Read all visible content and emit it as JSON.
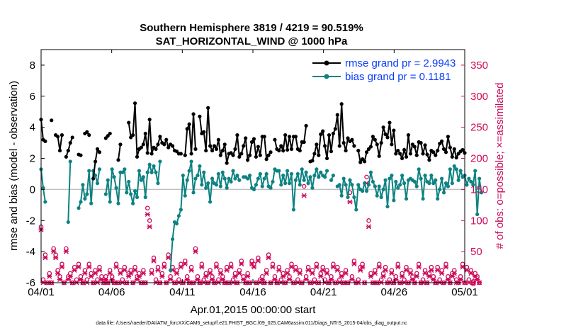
{
  "chart_data": {
    "type": "line",
    "title": "Southern Hemisphere 3819 / 4219 = 90.519%",
    "subtitle": "SAT_HORIZONTAL_WIND @ 1000 hPa",
    "xlabel": "Apr.01,2015 00:00:00 start",
    "ylabel": "rmse and bias (model - observation)",
    "ylabel_right": "# of obs: o=possible; ×=assimilated",
    "footnote": "data file: /Users/raeder/DAI/ATM_forcXX/CAM6_setup/f.e21.FHIST_BGC.f09_025.CAM6assim.011/Diags_NTrS_2015-04/obs_diag_output.nc",
    "xlim": [
      0,
      30
    ],
    "ylim": [
      -6,
      9
    ],
    "ylim_right": [
      0,
      375
    ],
    "x_ticks": [
      0,
      5,
      10,
      15,
      20,
      25,
      30
    ],
    "x_tick_labels": [
      "04/01",
      "04/06",
      "04/11",
      "04/16",
      "04/21",
      "04/26",
      "05/01"
    ],
    "y_ticks": [
      -6,
      -4,
      -2,
      0,
      2,
      4,
      6,
      8
    ],
    "y_right_ticks": [
      0,
      50,
      100,
      150,
      200,
      250,
      300,
      350
    ],
    "grid": false,
    "legend_position": "top-right",
    "colors": {
      "rmse": "#000000",
      "bias": "#0e8282",
      "obs": "#cc0a59",
      "zero_line": "#bfbfbf",
      "legend_text": "#0a3cff"
    },
    "legend": [
      {
        "name": "rmse",
        "label": "rmse grand pr = 2.9943"
      },
      {
        "name": "bias",
        "label": "bias grand pr = 0.1181"
      }
    ],
    "series": [
      {
        "name": "rmse",
        "values": [
          4.5,
          3.2,
          3.1,
          null,
          null,
          4.45,
          null,
          3.5,
          3.4,
          2.5,
          3.5,
          null,
          2.1,
          2.5,
          3.0,
          3.35,
          null,
          null,
          2.25,
          2.2,
          null,
          3.6,
          3.7,
          3.5,
          null,
          0.7,
          1.8,
          2.6,
          2.4,
          null,
          null,
          3.3,
          3.45,
          3.6,
          null,
          null,
          null,
          1.9,
          2.9,
          null,
          null,
          null,
          4.3,
          3.35,
          3.5,
          5.55,
          2.1,
          2.6,
          2.7,
          2.9,
          3.6,
          2.35,
          4.5,
          2.3,
          2.7,
          2.6,
          2.9,
          3.4,
          3.0,
          2.9,
          3.2,
          2.7,
          2.9,
          2.8,
          2.5,
          2.45,
          2.3,
          2.3,
          null,
          2.2,
          3.9,
          4.2,
          2.3,
          4.85,
          2.6,
          null,
          4.7,
          3.6,
          3.7,
          2.5,
          5.25,
          2.8,
          2.5,
          2.8,
          2.6,
          3.2,
          2.2,
          2.5,
          2.9,
          1.7,
          2.3,
          2.35,
          2.2,
          2.6,
          3.5,
          2.1,
          2.3,
          2.8,
          3.3,
          1.9,
          2.2,
          3.05,
          3.25,
          2.1,
          2.75,
          2.2,
          3.4,
          3.4,
          1.95,
          2.2,
          2.4,
          null,
          3.2,
          2.6,
          2.5,
          2.8,
          2.5,
          3.5,
          2.55,
          3.4,
          2.6,
          3.4,
          3.4,
          2.6,
          2.5,
          3.05,
          3.05,
          4.1,
          null,
          1.8,
          1.85,
          2.3,
          2.9,
          2.2,
          3.55,
          3.75,
          2.8,
          2.0,
          3.5,
          2.45,
          3.6,
          3.9,
          4.8,
          2.8,
          5.5,
          3.0,
          2.5,
          3.3,
          3.1,
          3.2,
          2.8,
          null,
          2.5,
          1.75,
          1.95,
          1.8,
          2.4,
          2.6,
          2.75,
          3.4,
          3.2,
          2.9,
          2.15,
          3.0,
          4.0,
          3.55,
          3.35,
          4.3,
          2.9,
          3.8,
          2.3,
          2.5,
          2.3,
          2.0,
          2.55,
          2.1,
          3.5,
          2.3,
          2.9,
          2.75,
          2.2,
          3.05,
          3.0,
          2.3,
          2.85,
          2.25,
          1.9,
          2.5,
          2.4,
          2.2,
          2.5,
          2.95,
          3.1,
          2.6,
          2.4,
          3.4,
          2.7,
          2.1,
          2.6,
          2.05,
          2.3,
          2.45,
          2.55,
          2.35
        ]
      },
      {
        "name": "bias",
        "values": [
          1.3,
          0.1,
          -0.8,
          null,
          null,
          null,
          null,
          null,
          null,
          null,
          null,
          null,
          null,
          -2.1,
          1.8,
          null,
          null,
          null,
          -1.2,
          -0.8,
          0.3,
          -0.6,
          -0.3,
          1.2,
          -0.9,
          1.2,
          0.9,
          0.4,
          1.3,
          null,
          null,
          -0.3,
          0.6,
          -0.8,
          1.3,
          0.8,
          0.1,
          -0.9,
          1.1,
          1.1,
          1.3,
          -0.2,
          0.5,
          -0.3,
          -0.9,
          -0.1,
          -0.5,
          1.2,
          0.6,
          0.8,
          -0.5,
          1.1,
          1.6,
          1.1,
          1.5,
          1.1,
          0.4,
          1.8,
          null,
          null,
          null,
          null,
          -5.2,
          -3.2,
          -2.1,
          -2.2,
          -1.7,
          -1.3,
          0.9,
          -0.4,
          0.6,
          1.2,
          1.8,
          -0.2,
          0.7,
          0.9,
          1.5,
          0.3,
          1.1,
          0.1,
          0.4,
          -0.8,
          0.7,
          0.4,
          0.3,
          1.0,
          0.2,
          1.1,
          0.7,
          0.1,
          0.7,
          0.5,
          1.2,
          0.7,
          0.9,
          0.6,
          null,
          0.8,
          0.8,
          0.7,
          0.9,
          0.1,
          0.0,
          0.3,
          0.7,
          1.0,
          0.2,
          0.7,
          1.0,
          0.2,
          0.1,
          0.5,
          1.3,
          1.2,
          1.2,
          0.3,
          0.9,
          0.4,
          1.2,
          0.4,
          1.0,
          -1.3,
          0.6,
          1.0,
          0.3,
          1.3,
          0.6,
          1.1,
          0.4,
          0.8,
          0.1,
          0.9,
          1.3,
          0.8,
          1.1,
          0.9,
          0.8,
          1.2,
          null,
          0.6,
          0.9,
          null,
          0.2,
          0.3,
          -0.4,
          0.7,
          0.3,
          -0.5,
          0.6,
          0.3,
          -0.5,
          -1.3,
          0.3,
          0.0,
          -0.1,
          0.4,
          -0.1,
          0.3,
          1.1,
          0.5,
          0.2,
          -0.4,
          0.2,
          -0.5,
          0.0,
          0.6,
          -1.1,
          0.7,
          0.9,
          -0.7,
          0.5,
          0.1,
          0.3,
          0.9,
          0.4,
          -0.6,
          0.6,
          0.7,
          0.6,
          0.5,
          0.2,
          1.3,
          0.7,
          -0.6,
          0.9,
          0.5,
          0.4,
          0.9,
          0.4,
          0.6,
          -0.6,
          0.0,
          0.7,
          -0.2,
          0.4,
          0.2,
          1.3,
          0.4,
          1.5,
          1.3,
          0.6,
          1.2,
          0.8,
          0.9,
          0.3,
          0.7,
          0.5,
          0.3,
          1.2,
          -1.6,
          0.7,
          -0.2
        ]
      },
      {
        "name": "obs_possible",
        "values": [
          90,
          5,
          45,
          0,
          15,
          0,
          55,
          45,
          20,
          10,
          30,
          0,
          55,
          10,
          15,
          0,
          25,
          5,
          30,
          10,
          0,
          20,
          5,
          30,
          15,
          0,
          20,
          5,
          25,
          10,
          0,
          10,
          0,
          20,
          10,
          0,
          30,
          0,
          20,
          5,
          25,
          0,
          15,
          20,
          0,
          25,
          10,
          15,
          0,
          20,
          0,
          120,
          100,
          20,
          40,
          5,
          25,
          0,
          15,
          30,
          0,
          45,
          10,
          25,
          0,
          20,
          5,
          30,
          0,
          35,
          10,
          0,
          25,
          0,
          55,
          10,
          0,
          30,
          5,
          15,
          0,
          20,
          10,
          0,
          30,
          5,
          20,
          10,
          0,
          25,
          0,
          30,
          5,
          15,
          0,
          20,
          35,
          10,
          0,
          15,
          0,
          35,
          30,
          0,
          40,
          5,
          10,
          0,
          20,
          45,
          0,
          30,
          10,
          0,
          25,
          5,
          15,
          0,
          20,
          10,
          30,
          0,
          25,
          5,
          20,
          0,
          155,
          10,
          25,
          0,
          20,
          5,
          30,
          0,
          15,
          25,
          5,
          20,
          0,
          10,
          30,
          0,
          25,
          5,
          15,
          0,
          20,
          0,
          145,
          10,
          35,
          0,
          5,
          25,
          30,
          0,
          170,
          100,
          15,
          0,
          20,
          0,
          30,
          5,
          15,
          25,
          0,
          5,
          20,
          0,
          10,
          30,
          0,
          15,
          5,
          25,
          0,
          20,
          10,
          0,
          15,
          30,
          0,
          5,
          20,
          0,
          15,
          25,
          10,
          0,
          25,
          5,
          20,
          0,
          30,
          10,
          0,
          15,
          20,
          5,
          0,
          10,
          30,
          0,
          25,
          5,
          20,
          0,
          15,
          10,
          0
        ]
      },
      {
        "name": "obs_assimilated",
        "values": [
          85,
          0,
          40,
          0,
          10,
          0,
          50,
          40,
          15,
          5,
          25,
          0,
          50,
          5,
          10,
          0,
          20,
          0,
          25,
          5,
          0,
          15,
          0,
          25,
          10,
          0,
          15,
          0,
          20,
          5,
          0,
          5,
          0,
          15,
          5,
          0,
          25,
          0,
          15,
          0,
          20,
          0,
          10,
          15,
          0,
          20,
          5,
          10,
          0,
          15,
          0,
          110,
          90,
          15,
          35,
          0,
          20,
          0,
          10,
          25,
          0,
          40,
          5,
          20,
          0,
          15,
          0,
          25,
          0,
          30,
          5,
          0,
          20,
          0,
          50,
          5,
          0,
          25,
          0,
          10,
          0,
          15,
          5,
          0,
          25,
          0,
          15,
          5,
          0,
          20,
          0,
          25,
          0,
          10,
          0,
          15,
          30,
          5,
          0,
          10,
          0,
          30,
          25,
          0,
          35,
          0,
          5,
          0,
          15,
          40,
          0,
          25,
          5,
          0,
          20,
          0,
          10,
          0,
          15,
          5,
          25,
          0,
          20,
          0,
          15,
          0,
          140,
          5,
          20,
          0,
          15,
          0,
          25,
          0,
          10,
          20,
          0,
          15,
          0,
          5,
          25,
          0,
          20,
          0,
          10,
          0,
          15,
          0,
          130,
          5,
          30,
          0,
          0,
          20,
          25,
          0,
          160,
          90,
          10,
          0,
          15,
          0,
          25,
          0,
          10,
          20,
          0,
          0,
          15,
          0,
          5,
          25,
          0,
          10,
          0,
          20,
          0,
          15,
          5,
          0,
          10,
          25,
          0,
          0,
          15,
          0,
          10,
          20,
          5,
          0,
          20,
          0,
          15,
          0,
          25,
          5,
          0,
          10,
          15,
          0,
          0,
          5,
          25,
          0,
          20,
          0,
          15,
          0,
          10,
          5,
          0
        ]
      }
    ]
  }
}
